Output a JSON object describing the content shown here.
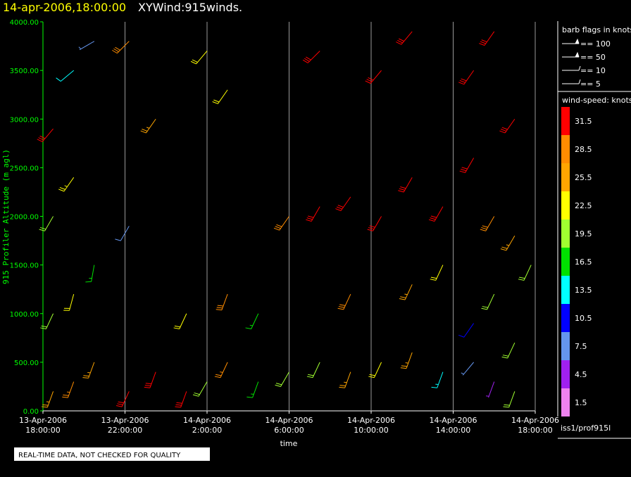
{
  "chart_data": {
    "type": "windbarb",
    "title": "14-apr-2006,18:00:00",
    "subtitle": "XYWind:915winds.",
    "ylabel": "915 Profiler Altitude (m agl)",
    "xlabel": "time",
    "xlim": [
      0,
      24
    ],
    "xticks": [
      {
        "value": 0,
        "label": "13-Apr-2006 18:00:00"
      },
      {
        "value": 4,
        "label": "13-Apr-2006 22:00:00"
      },
      {
        "value": 8,
        "label": "14-Apr-2006 2:00:00"
      },
      {
        "value": 12,
        "label": "14-Apr-2006 6:00:00"
      },
      {
        "value": 16,
        "label": "14-Apr-2006 10:00:00"
      },
      {
        "value": 20,
        "label": "14-Apr-2006 14:00:00"
      },
      {
        "value": 24,
        "label": "14-Apr-2006 18:00:00"
      }
    ],
    "ylim": [
      0,
      4000
    ],
    "yticks": [
      {
        "value": 0,
        "label": "0.00"
      },
      {
        "value": 500,
        "label": "500.00"
      },
      {
        "value": 1000,
        "label": "1000.00"
      },
      {
        "value": 1500,
        "label": "1500.00"
      },
      {
        "value": 2000,
        "label": "2000.00"
      },
      {
        "value": 2500,
        "label": "2500.00"
      },
      {
        "value": 3000,
        "label": "3000.00"
      },
      {
        "value": 3500,
        "label": "3500.00"
      },
      {
        "value": 4000,
        "label": "4000.00"
      }
    ],
    "grid": true,
    "x": [
      0.5,
      0.5,
      0.5,
      0.5,
      1.5,
      1.5,
      1.5,
      1.5,
      2.5,
      2.5,
      2.5,
      4.2,
      4.2,
      4.2,
      5.5,
      5.5,
      7,
      7,
      8,
      8,
      9,
      9,
      9,
      10.5,
      10.5,
      12,
      12,
      13.5,
      13.5,
      13.5,
      15,
      15,
      15,
      16.5,
      16.5,
      16.5,
      18,
      18,
      18,
      18,
      19.5,
      19.5,
      19.5,
      21,
      21,
      21,
      21,
      22,
      22,
      22,
      22,
      23,
      23,
      23,
      23,
      23.8
    ],
    "y": [
      200,
      1000,
      2000,
      2900,
      300,
      1200,
      2400,
      3500,
      500,
      1500,
      3800,
      200,
      1900,
      3800,
      400,
      3000,
      200,
      1000,
      300,
      3700,
      500,
      1200,
      3300,
      300,
      1000,
      400,
      2000,
      500,
      2100,
      3700,
      400,
      1200,
      2200,
      500,
      2000,
      3500,
      600,
      1300,
      2400,
      3900,
      400,
      1500,
      2100,
      500,
      900,
      2600,
      3500,
      300,
      1200,
      2000,
      3900,
      200,
      700,
      1800,
      3000,
      1500
    ],
    "speed": [
      25,
      20,
      18,
      31,
      27,
      22,
      23,
      12,
      26,
      15,
      6,
      31,
      8,
      28,
      31,
      26,
      31,
      22,
      20,
      22,
      27,
      28,
      21,
      17,
      16,
      19,
      29,
      18,
      32,
      32,
      26,
      28,
      32,
      22,
      32,
      32,
      24,
      26,
      32,
      32,
      14,
      22,
      31,
      6,
      9,
      32,
      32,
      5,
      18,
      28,
      32,
      19,
      20,
      26,
      32,
      20
    ],
    "direction": [
      200,
      205,
      210,
      220,
      200,
      195,
      215,
      230,
      200,
      190,
      240,
      205,
      210,
      225,
      200,
      215,
      200,
      205,
      210,
      220,
      205,
      200,
      215,
      200,
      205,
      210,
      215,
      205,
      210,
      225,
      200,
      205,
      215,
      205,
      210,
      220,
      200,
      205,
      210,
      220,
      200,
      205,
      210,
      220,
      215,
      210,
      215,
      200,
      205,
      210,
      215,
      200,
      205,
      210,
      215,
      205
    ],
    "flags_title": "barb flags in knots",
    "flags": [
      "== 100",
      "== 50",
      "== 10",
      "== 5"
    ],
    "colorbar_title": "wind-speed: knots",
    "colorbar": {
      "labels": [
        "31.5",
        "28.5",
        "25.5",
        "22.5",
        "19.5",
        "16.5",
        "13.5",
        "10.5",
        "7.5",
        "4.5",
        "1.5"
      ],
      "colors": [
        "#ff0000",
        "#ff8c00",
        "#ffa500",
        "#ffff00",
        "#a0ff30",
        "#00e000",
        "#00ffff",
        "#0000ff",
        "#6495ed",
        "#a020f0",
        "#ee82ee"
      ]
    },
    "source": "iss1/prof915l",
    "notice": "REAL-TIME DATA, NOT CHECKED FOR QUALITY"
  }
}
